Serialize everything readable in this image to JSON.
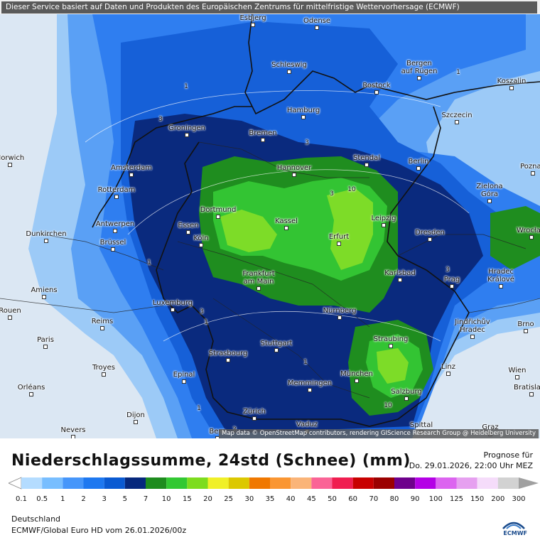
{
  "banner": "Dieser Service basiert auf Daten und Produkten des Europäischen Zentrums für mittelfristige Wettervorhersage (ECMWF)",
  "attribution": "Map data © OpenStreetMap contributors, rendering GIScience Research Group @ Heidelberg University",
  "title": "Niederschlagssumme, 24std (Schnee) (mm)",
  "prognose_label": "Prognose für",
  "prognose_date": "Do. 29.01.2026, 22:00 Uhr MEZ",
  "region": "Deutschland",
  "model_run": "ECMWF/Global Euro HD vom  26.01.2026/00z",
  "logo_text": "ECMWF",
  "legend": {
    "ticks": [
      "0.1",
      "0.5",
      "1",
      "2",
      "3",
      "5",
      "7",
      "10",
      "15",
      "20",
      "25",
      "30",
      "35",
      "40",
      "45",
      "50",
      "60",
      "70",
      "80",
      "90",
      "100",
      "125",
      "150",
      "200",
      "300"
    ],
    "colors": [
      "#b4dcff",
      "#78beff",
      "#4696fa",
      "#1e78f0",
      "#0a5ad2",
      "#06287d",
      "#1e8c1e",
      "#32c832",
      "#7ddc1e",
      "#f0f028",
      "#dcc800",
      "#f07800",
      "#fa9632",
      "#fab478",
      "#fa6496",
      "#f01e50",
      "#c80000",
      "#9b0000",
      "#6e008c",
      "#b400e6",
      "#dc64f0",
      "#e6a0f0",
      "#f5dcfa",
      "#d2d2d2"
    ]
  },
  "cities": [
    {
      "name": "Esbjerg",
      "dot": true
    },
    {
      "name": "Odense",
      "dot": true
    },
    {
      "name": "Schleswig",
      "dot": true
    },
    {
      "name": "Bergen auf Rügen",
      "dot": true
    },
    {
      "name": "Koszalin",
      "dot": true
    },
    {
      "name": "Rostock",
      "dot": true
    },
    {
      "name": "Hamburg",
      "dot": true
    },
    {
      "name": "Szczecin",
      "dot": true
    },
    {
      "name": "Groningen",
      "dot": true
    },
    {
      "name": "Bremen",
      "dot": true
    },
    {
      "name": "Norwich",
      "dot": true
    },
    {
      "name": "Amsterdam",
      "dot": true
    },
    {
      "name": "Hannover",
      "dot": true
    },
    {
      "name": "Stendal",
      "dot": true
    },
    {
      "name": "Berlin",
      "dot": true
    },
    {
      "name": "Poznań",
      "dot": true
    },
    {
      "name": "Rotterdam",
      "dot": true
    },
    {
      "name": "Zielona Góra",
      "dot": true
    },
    {
      "name": "Dortmund",
      "dot": true
    },
    {
      "name": "Leipzig",
      "dot": true
    },
    {
      "name": "Antwerpen",
      "dot": true
    },
    {
      "name": "Essen",
      "dot": true
    },
    {
      "name": "Kassel",
      "dot": true
    },
    {
      "name": "Dunkirchen",
      "dot": true
    },
    {
      "name": "Brüssel",
      "dot": true
    },
    {
      "name": "Köln",
      "dot": true
    },
    {
      "name": "Erfurt",
      "dot": true
    },
    {
      "name": "Dresden",
      "dot": true
    },
    {
      "name": "Wrocław",
      "dot": true
    },
    {
      "name": "Frankfurt am Main",
      "dot": true
    },
    {
      "name": "Karlsbad",
      "dot": true
    },
    {
      "name": "Hradec Králové",
      "dot": true
    },
    {
      "name": "Amiens",
      "dot": true
    },
    {
      "name": "Prag",
      "dot": true
    },
    {
      "name": "Luxemburg",
      "dot": true
    },
    {
      "name": "Nürnberg",
      "dot": true
    },
    {
      "name": "Rouen",
      "dot": true
    },
    {
      "name": "Reims",
      "dot": true
    },
    {
      "name": "Jindřichův Hradec",
      "dot": true
    },
    {
      "name": "Brno",
      "dot": true
    },
    {
      "name": "Paris",
      "dot": true
    },
    {
      "name": "Stuttgart",
      "dot": true
    },
    {
      "name": "Straubing",
      "dot": true
    },
    {
      "name": "Strasbourg",
      "dot": true
    },
    {
      "name": "Troyes",
      "dot": true
    },
    {
      "name": "Linz",
      "dot": true
    },
    {
      "name": "Wien",
      "dot": true
    },
    {
      "name": "Epinal",
      "dot": true
    },
    {
      "name": "München",
      "dot": true
    },
    {
      "name": "Memmingen",
      "dot": true
    },
    {
      "name": "Bratislava",
      "dot": true
    },
    {
      "name": "Orléans",
      "dot": true
    },
    {
      "name": "Salzburg",
      "dot": true
    },
    {
      "name": "Zürich",
      "dot": true
    },
    {
      "name": "Dijon",
      "dot": true
    },
    {
      "name": "Vaduz",
      "dot": true
    },
    {
      "name": "Spittal",
      "dot": true
    },
    {
      "name": "Graz",
      "dot": true
    },
    {
      "name": "Bern",
      "dot": true
    },
    {
      "name": "Nevers",
      "dot": true
    }
  ],
  "contour_labels": [
    "1",
    "1",
    "3",
    "3",
    "3",
    "10",
    "3",
    "10",
    "3",
    "1",
    "1",
    "1",
    "3",
    "1"
  ]
}
